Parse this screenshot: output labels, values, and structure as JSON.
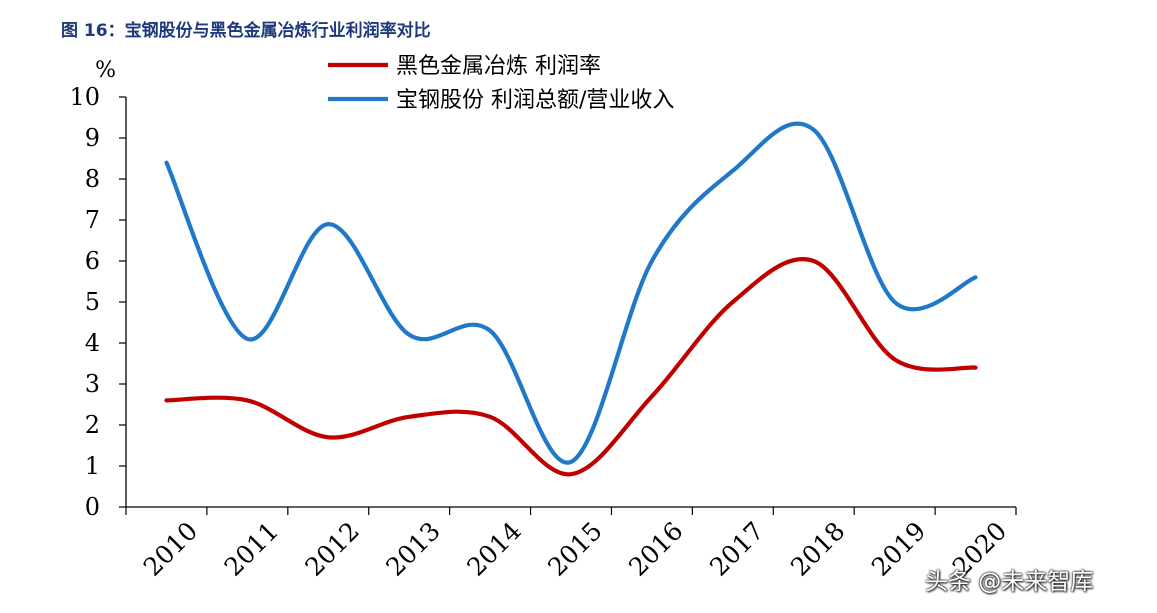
{
  "figure": {
    "title": "图 16：宝钢股份与黑色金属冶炼行业利润率对比",
    "watermark": "头条 @未来智库"
  },
  "chart_data": {
    "type": "line",
    "title": "",
    "xlabel": "",
    "ylabel": "%",
    "x": [
      "2010",
      "2011",
      "2012",
      "2013",
      "2014",
      "2015",
      "2016",
      "2017",
      "2018",
      "2019",
      "2020"
    ],
    "ylim": [
      0,
      10
    ],
    "yticks": [
      0,
      1,
      2,
      3,
      4,
      5,
      6,
      7,
      8,
      9,
      10
    ],
    "grid": false,
    "legend": "top",
    "smooth": true,
    "series": [
      {
        "name": "黑色金属冶炼 利润率",
        "color": "#c00000",
        "values": [
          2.6,
          2.6,
          1.7,
          2.2,
          2.2,
          0.8,
          2.7,
          5.0,
          6.0,
          3.6,
          3.4
        ]
      },
      {
        "name": "宝钢股份 利润总额/营业收入",
        "color": "#1f78c8",
        "values": [
          8.4,
          4.1,
          6.9,
          4.2,
          4.3,
          1.1,
          6.0,
          8.2,
          9.2,
          5.0,
          5.6
        ]
      }
    ]
  }
}
